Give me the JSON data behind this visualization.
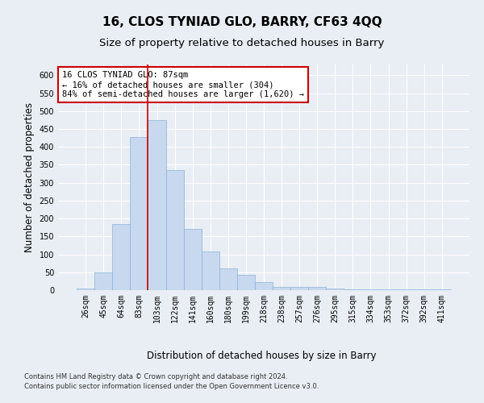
{
  "title": "16, CLOS TYNIAD GLO, BARRY, CF63 4QQ",
  "subtitle": "Size of property relative to detached houses in Barry",
  "xlabel": "Distribution of detached houses by size in Barry",
  "ylabel": "Number of detached properties",
  "footnote1": "Contains HM Land Registry data © Crown copyright and database right 2024.",
  "footnote2": "Contains public sector information licensed under the Open Government Licence v3.0.",
  "annotation_title": "16 CLOS TYNIAD GLO: 87sqm",
  "annotation_line1": "← 16% of detached houses are smaller (304)",
  "annotation_line2": "84% of semi-detached houses are larger (1,620) →",
  "categories": [
    "26sqm",
    "45sqm",
    "64sqm",
    "83sqm",
    "103sqm",
    "122sqm",
    "141sqm",
    "160sqm",
    "180sqm",
    "199sqm",
    "218sqm",
    "238sqm",
    "257sqm",
    "276sqm",
    "295sqm",
    "315sqm",
    "334sqm",
    "353sqm",
    "372sqm",
    "392sqm",
    "411sqm"
  ],
  "values": [
    5,
    50,
    185,
    428,
    475,
    335,
    172,
    107,
    60,
    43,
    22,
    10,
    10,
    8,
    5,
    3,
    3,
    2,
    2,
    3,
    2
  ],
  "bar_color": "#c8d8ee",
  "bar_edge_color": "#8ab4d8",
  "vline_x_index": 3.5,
  "vline_color": "#cc0000",
  "annotation_box_color": "#cc0000",
  "ylim": [
    0,
    630
  ],
  "yticks": [
    0,
    50,
    100,
    150,
    200,
    250,
    300,
    350,
    400,
    450,
    500,
    550,
    600
  ],
  "background_color": "#e8eef4",
  "plot_bg_color": "#e8eef4",
  "grid_color": "#ffffff",
  "title_fontsize": 11,
  "subtitle_fontsize": 9.5,
  "tick_fontsize": 7,
  "label_fontsize": 8.5
}
